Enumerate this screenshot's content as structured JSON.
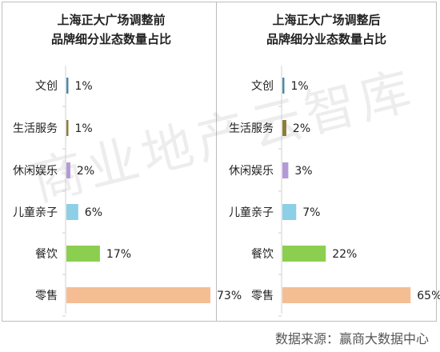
{
  "watermark": "商业地产云智库",
  "source": "数据来源：赢商大数据中心",
  "chart_data": [
    {
      "type": "bar",
      "orientation": "horizontal",
      "title": [
        "上海正大广场调整前",
        "品牌细分业态数量占比"
      ],
      "categories": [
        "文创",
        "生活服务",
        "休闲娱乐",
        "儿童亲子",
        "餐饮",
        "零售"
      ],
      "values": [
        1,
        1,
        2,
        6,
        17,
        73
      ],
      "value_labels": [
        "1%",
        "1%",
        "2%",
        "6%",
        "17%",
        "73%"
      ],
      "colors": [
        "#4a8aa6",
        "#8a7d3a",
        "#b39ad6",
        "#8ccfe6",
        "#8ccf50",
        "#f5bd93"
      ],
      "xlim": [
        0,
        100
      ],
      "grid": false
    },
    {
      "type": "bar",
      "orientation": "horizontal",
      "title": [
        "上海正大广场调整后",
        "品牌细分业态数量占比"
      ],
      "categories": [
        "文创",
        "生活服务",
        "休闲娱乐",
        "儿童亲子",
        "餐饮",
        "零售"
      ],
      "values": [
        1,
        2,
        3,
        7,
        22,
        65
      ],
      "value_labels": [
        "1%",
        "2%",
        "3%",
        "7%",
        "22%",
        "65%"
      ],
      "colors": [
        "#4a8aa6",
        "#8a7d3a",
        "#b39ad6",
        "#8ccfe6",
        "#8ccf50",
        "#f5bd93"
      ],
      "xlim": [
        0,
        100
      ],
      "grid": false
    }
  ]
}
